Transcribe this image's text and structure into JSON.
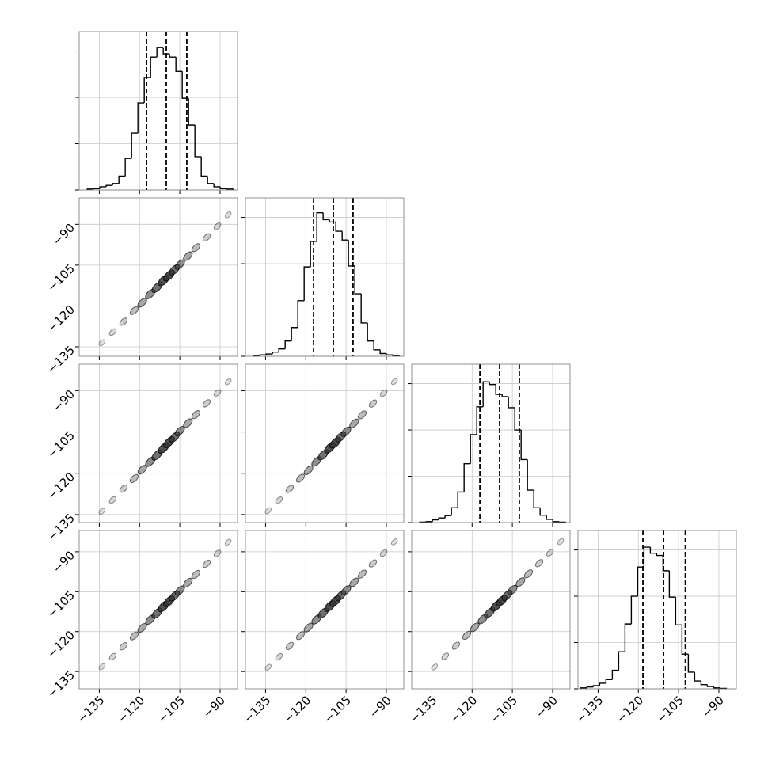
{
  "chart_data": [
    {
      "type": "histogram",
      "color": "#000000",
      "bins": [
        -139.5,
        -137.14,
        -134.78,
        -132.42,
        -130.06,
        -127.7,
        -125.34,
        -122.98,
        -120.62,
        -118.26,
        -115.9,
        -113.54,
        -111.18,
        -108.82,
        -106.46,
        -104.1,
        -101.74,
        -99.38,
        -97.02,
        -94.66,
        -92.3,
        -89.94,
        -87.58,
        -85.22
      ],
      "values": [
        0.02,
        0.03,
        0.07,
        0.1,
        0.14,
        0.3,
        0.68,
        1.23,
        1.88,
        2.43,
        2.87,
        3.08,
        2.94,
        2.87,
        2.56,
        1.98,
        1.4,
        0.72,
        0.3,
        0.14,
        0.07,
        0.03,
        0.02
      ],
      "quantiles": [
        -117.4,
        -110.05,
        -102.4
      ],
      "xlim": [
        -142.5,
        -83.5
      ],
      "xticks": [
        -135,
        -120,
        -105,
        -90
      ],
      "ylim": [
        0,
        3.42
      ],
      "yticks": [
        0,
        1,
        2,
        3
      ],
      "grid": true
    },
    {
      "type": "scatter",
      "color": "#333333",
      "x": [
        -134,
        -130,
        -126,
        -122,
        -119,
        -116,
        -113.5,
        -111,
        -109,
        -107,
        -105,
        -102,
        -99,
        -95,
        -91,
        -87
      ],
      "y": [
        -133.5,
        -129.6,
        -125.8,
        -121.7,
        -118.8,
        -115.6,
        -113.2,
        -110.6,
        -108.8,
        -106.7,
        -104.8,
        -101.7,
        -98.6,
        -94.8,
        -90.7,
        -86.5
      ],
      "xlim": [
        -142.5,
        -83.5
      ],
      "xticks": [
        -135,
        -120,
        -105,
        -90
      ],
      "ylim": [
        -138.5,
        -80.3
      ],
      "yticks": [
        {
          "value": -135,
          "label": "−135"
        },
        {
          "value": -120,
          "label": "−120"
        },
        {
          "value": -105,
          "label": "−105"
        },
        {
          "value": -90,
          "label": "−90"
        }
      ],
      "grid": true
    },
    {
      "type": "histogram",
      "color": "#000000",
      "bins": [
        -139.5,
        -137.14,
        -134.78,
        -132.42,
        -130.06,
        -127.7,
        -125.34,
        -122.98,
        -120.62,
        -118.26,
        -115.9,
        -113.54,
        -111.18,
        -108.82,
        -106.46,
        -104.1,
        -101.74,
        -99.38,
        -97.02,
        -94.66,
        -92.3,
        -89.94,
        -87.58,
        -85.22
      ],
      "values": [
        0.01,
        0.03,
        0.05,
        0.09,
        0.16,
        0.33,
        0.62,
        1.2,
        1.93,
        2.48,
        3.1,
        2.95,
        2.9,
        2.7,
        2.51,
        1.95,
        1.35,
        0.72,
        0.33,
        0.14,
        0.06,
        0.03,
        0.01
      ],
      "quantiles": [
        -117.1,
        -109.75,
        -102.4
      ],
      "xlim": [
        -142.5,
        -83.5
      ],
      "xticks": [
        -135,
        -120,
        -105,
        -90
      ],
      "ylim": [
        0,
        3.42
      ],
      "yticks": [
        0,
        1,
        2,
        3
      ],
      "grid": true
    },
    {
      "type": "scatter",
      "color": "#333333",
      "x": [
        -134,
        -130,
        -126,
        -122,
        -119,
        -116,
        -113.5,
        -111,
        -109,
        -107,
        -105,
        -102,
        -99,
        -95,
        -91,
        -87
      ],
      "y": [
        -133.8,
        -129.7,
        -125.6,
        -121.9,
        -118.7,
        -115.8,
        -113.4,
        -110.8,
        -108.7,
        -106.9,
        -104.7,
        -101.8,
        -98.7,
        -94.6,
        -90.8,
        -86.8
      ],
      "xlim": [
        -142.5,
        -83.5
      ],
      "xticks": [
        -135,
        -120,
        -105,
        -90
      ],
      "ylim": [
        -137.9,
        -80.4
      ],
      "yticks": [
        {
          "value": -135,
          "label": "−135"
        },
        {
          "value": -120,
          "label": "−120"
        },
        {
          "value": -105,
          "label": "−105"
        },
        {
          "value": -90,
          "label": "−90"
        }
      ],
      "grid": true
    },
    {
      "type": "scatter",
      "color": "#333333",
      "x": [
        -134,
        -130,
        -126,
        -122,
        -119,
        -116,
        -113.5,
        -111,
        -109,
        -107,
        -105,
        -102,
        -99,
        -95,
        -91,
        -87
      ],
      "y": [
        -133.6,
        -129.8,
        -125.7,
        -121.8,
        -118.9,
        -115.7,
        -113.3,
        -110.7,
        -108.9,
        -106.8,
        -104.9,
        -101.9,
        -98.8,
        -94.7,
        -90.9,
        -86.7
      ],
      "xlim": [
        -142.5,
        -83.5
      ],
      "xticks": [
        -135,
        -120,
        -105,
        -90
      ],
      "ylim": [
        -137.9,
        -80.4
      ],
      "yticks": [
        -135,
        -120,
        -105,
        -90
      ],
      "grid": true
    },
    {
      "type": "histogram",
      "color": "#000000",
      "bins": [
        -139.5,
        -137.14,
        -134.78,
        -132.42,
        -130.06,
        -127.7,
        -125.34,
        -122.98,
        -120.62,
        -118.26,
        -115.9,
        -113.54,
        -111.18,
        -108.82,
        -106.46,
        -104.1,
        -101.74,
        -99.38,
        -97.02,
        -94.66,
        -92.3,
        -89.94,
        -87.58,
        -85.22
      ],
      "values": [
        0.01,
        0.02,
        0.06,
        0.1,
        0.15,
        0.32,
        0.66,
        1.27,
        1.9,
        2.5,
        3.04,
        2.98,
        2.77,
        2.72,
        2.48,
        2.0,
        1.36,
        0.7,
        0.32,
        0.16,
        0.07,
        0.02,
        0.01
      ],
      "quantiles": [
        -117.1,
        -109.75,
        -102.4
      ],
      "xlim": [
        -142.5,
        -83.5
      ],
      "xticks": [
        -135,
        -120,
        -105,
        -90
      ],
      "ylim": [
        0,
        3.42
      ],
      "yticks": [
        0,
        1,
        2,
        3
      ],
      "grid": true
    },
    {
      "type": "scatter",
      "color": "#333333",
      "x": [
        -134,
        -130,
        -126,
        -122,
        -119,
        -116,
        -113.5,
        -111,
        -109,
        -107,
        -105,
        -102,
        -99,
        -95,
        -91,
        -87
      ],
      "y": [
        -133.2,
        -129.4,
        -125.5,
        -121.6,
        -118.6,
        -115.5,
        -113.1,
        -110.5,
        -108.6,
        -106.6,
        -104.6,
        -101.6,
        -98.5,
        -94.5,
        -90.6,
        -86.4
      ],
      "xlim": [
        -142.5,
        -83.5
      ],
      "xticks": [
        {
          "value": -135,
          "label": "−135"
        },
        {
          "value": -120,
          "label": "−120"
        },
        {
          "value": -105,
          "label": "−105"
        },
        {
          "value": -90,
          "label": "−90"
        }
      ],
      "ylim": [
        -141.5,
        -82
      ],
      "yticks": [
        {
          "value": -135,
          "label": "−135"
        },
        {
          "value": -120,
          "label": "−120"
        },
        {
          "value": -105,
          "label": "−105"
        },
        {
          "value": -90,
          "label": "−90"
        }
      ],
      "grid": true
    },
    {
      "type": "scatter",
      "color": "#333333",
      "x": [
        -134,
        -130,
        -126,
        -122,
        -119,
        -116,
        -113.5,
        -111,
        -109,
        -107,
        -105,
        -102,
        -99,
        -95,
        -91,
        -87
      ],
      "y": [
        -133.4,
        -129.5,
        -125.4,
        -121.5,
        -118.5,
        -115.4,
        -113.0,
        -110.4,
        -108.5,
        -106.5,
        -104.5,
        -101.5,
        -98.4,
        -94.4,
        -90.5,
        -86.3
      ],
      "xlim": [
        -142.5,
        -83.5
      ],
      "xticks": [
        {
          "value": -135,
          "label": "−135"
        },
        {
          "value": -120,
          "label": "−120"
        },
        {
          "value": -105,
          "label": "−105"
        },
        {
          "value": -90,
          "label": "−90"
        }
      ],
      "ylim": [
        -141.5,
        -82
      ],
      "yticks": [
        -135,
        -120,
        -105,
        -90
      ],
      "grid": true
    },
    {
      "type": "scatter",
      "color": "#333333",
      "x": [
        -134,
        -130,
        -126,
        -122,
        -119,
        -116,
        -113.5,
        -111,
        -109,
        -107,
        -105,
        -102,
        -99,
        -95,
        -91,
        -87
      ],
      "y": [
        -133.3,
        -129.3,
        -125.3,
        -121.4,
        -118.4,
        -115.3,
        -112.9,
        -110.3,
        -108.4,
        -106.4,
        -104.4,
        -101.4,
        -98.3,
        -94.3,
        -90.4,
        -86.2
      ],
      "xlim": [
        -142.5,
        -83.5
      ],
      "xticks": [
        {
          "value": -135,
          "label": "−135"
        },
        {
          "value": -120,
          "label": "−120"
        },
        {
          "value": -105,
          "label": "−105"
        },
        {
          "value": -90,
          "label": "−90"
        }
      ],
      "ylim": [
        -141.5,
        -82
      ],
      "yticks": [
        -135,
        -120,
        -105,
        -90
      ],
      "grid": true
    },
    {
      "type": "histogram",
      "color": "#000000",
      "bins": [
        -141.5,
        -139.14,
        -136.78,
        -134.42,
        -132.06,
        -129.7,
        -127.34,
        -124.98,
        -122.62,
        -120.26,
        -117.9,
        -115.54,
        -113.18,
        -110.82,
        -108.46,
        -106.1,
        -103.74,
        -101.38,
        -99.02,
        -96.66,
        -94.3,
        -91.94,
        -89.58,
        -87.22
      ],
      "values": [
        0.02,
        0.04,
        0.07,
        0.12,
        0.2,
        0.4,
        0.8,
        1.4,
        2.0,
        2.63,
        3.06,
        2.93,
        2.88,
        2.55,
        1.98,
        1.38,
        0.75,
        0.36,
        0.17,
        0.09,
        0.05,
        0.02,
        0.01
      ],
      "quantiles": [
        -118.3,
        -110.6,
        -102.5
      ],
      "xlim": [
        -142.5,
        -83.5
      ],
      "xticks": [
        {
          "value": -135,
          "label": "−135"
        },
        {
          "value": -120,
          "label": "−120"
        },
        {
          "value": -105,
          "label": "−105"
        },
        {
          "value": -90,
          "label": "−90"
        }
      ],
      "ylim": [
        0,
        3.42
      ],
      "yticks": [
        0,
        1,
        2,
        3
      ],
      "grid": true
    }
  ]
}
